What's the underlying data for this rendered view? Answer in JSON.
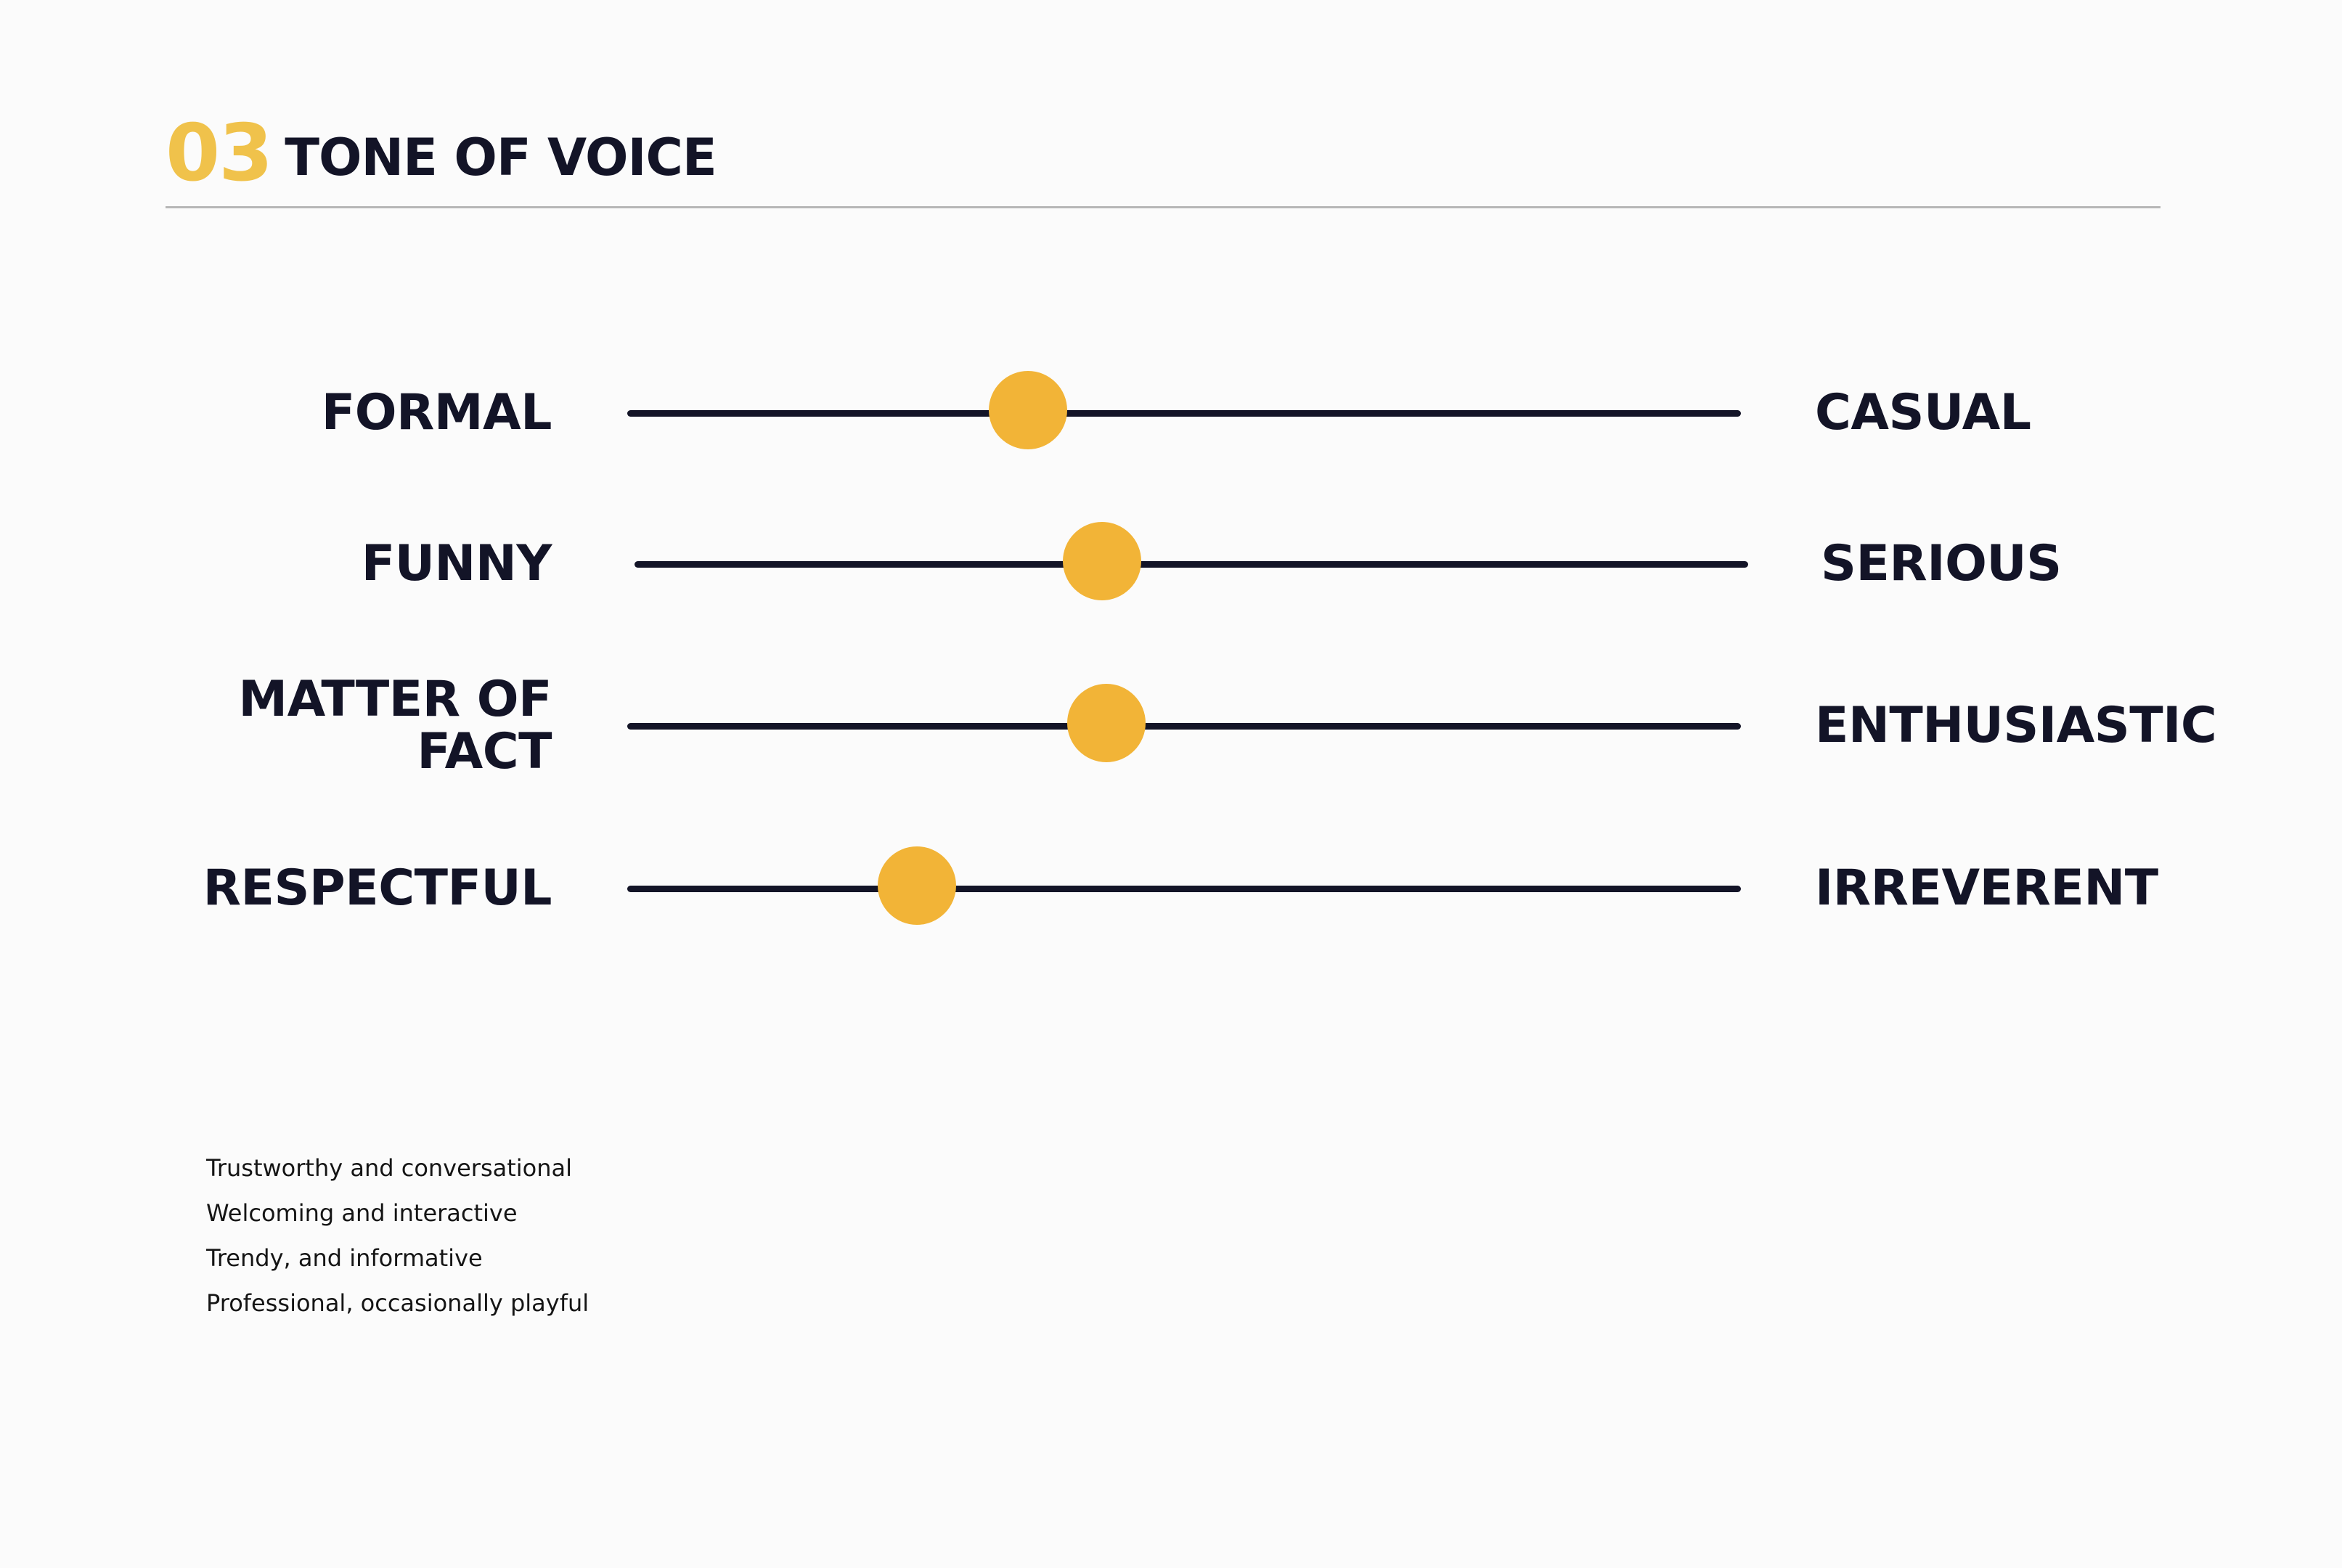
{
  "header": {
    "section_number": "03",
    "section_title": "TONE OF VOICE"
  },
  "scales": [
    {
      "left": "FORMAL",
      "right": "CASUAL",
      "level": 0.36
    },
    {
      "left": "FUNNY",
      "right": "SERIOUS",
      "level": 0.42
    },
    {
      "left": "MATTER OF\nFACT",
      "right": "ENTHUSIASTIC",
      "level": 0.43
    },
    {
      "left": "RESPECTFUL",
      "right": "IRREVERENT",
      "level": 0.26
    }
  ],
  "traits": [
    "Trustworthy and conversational",
    "Welcoming and interactive",
    "Trendy, and informative",
    "Professional, occasionally playful"
  ],
  "colors": {
    "accent": "#f2b437",
    "number": "#f0c24b",
    "ink": "#131427",
    "background": "#fbfbfb"
  }
}
